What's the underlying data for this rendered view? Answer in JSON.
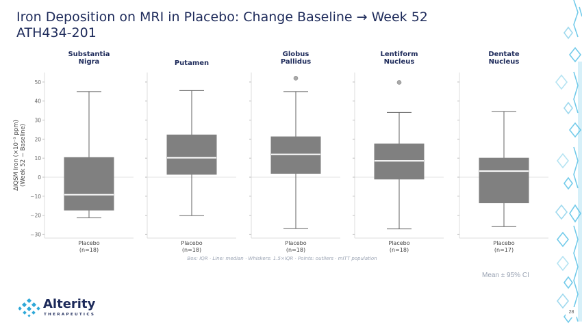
{
  "slide": {
    "title_line1": "Iron Deposition on MRI in Placebo: Change Baseline → Week 52",
    "title_line2": "ATH434-201",
    "note": "Mean ± 95% CI",
    "page_number": "28",
    "logo": {
      "name": "Alterity",
      "tagline": "THERAPEUTICS"
    }
  },
  "chart_data": {
    "type": "box",
    "ylabel": "ΔIQSM Iron (×10⁻³ ppm)\n(Week 52 − Baseline)",
    "ylim": [
      -32,
      55
    ],
    "yticks": [
      -30,
      -20,
      -10,
      0,
      10,
      20,
      30,
      40,
      50
    ],
    "footnote": "Box: IQR  ·  Line: median  ·  Whiskers: 1.5×IQR  ·  Points: outliers  ·  mITT population",
    "panels": [
      {
        "title": "Substantia\nNigra",
        "category": "Placebo",
        "n_label": "(n=18)",
        "q1": -17.3,
        "median": -9.2,
        "q3": 10.3,
        "whisker_low": -21.3,
        "whisker_high": 45,
        "outliers": []
      },
      {
        "title": "Putamen",
        "category": "Placebo",
        "n_label": "(n=18)",
        "q1": 1.5,
        "median": 10.2,
        "q3": 22.2,
        "whisker_low": -20.2,
        "whisker_high": 45.5,
        "outliers": []
      },
      {
        "title": "Globus\nPallidus",
        "category": "Placebo",
        "n_label": "(n=18)",
        "q1": 2,
        "median": 12,
        "q3": 21.2,
        "whisker_low": -27,
        "whisker_high": 45,
        "outliers": [
          52
        ]
      },
      {
        "title": "Lentiform\nNucleus",
        "category": "Placebo",
        "n_label": "(n=18)",
        "q1": -1,
        "median": 8.6,
        "q3": 17.5,
        "whisker_low": -27.2,
        "whisker_high": 34,
        "outliers": [
          49.8
        ]
      },
      {
        "title": "Dentate\nNucleus",
        "category": "Placebo",
        "n_label": "(n=17)",
        "q1": -13.5,
        "median": 3.2,
        "q3": 10,
        "whisker_low": -26,
        "whisker_high": 34.5,
        "outliers": []
      }
    ],
    "colors": {
      "box": "#808080",
      "median": "#ffffff",
      "whisker": "#606060",
      "outlier": "#a9a9a9",
      "title": "#1d2a5a",
      "zero_line": "#e3e3e3"
    },
    "grid": false
  }
}
